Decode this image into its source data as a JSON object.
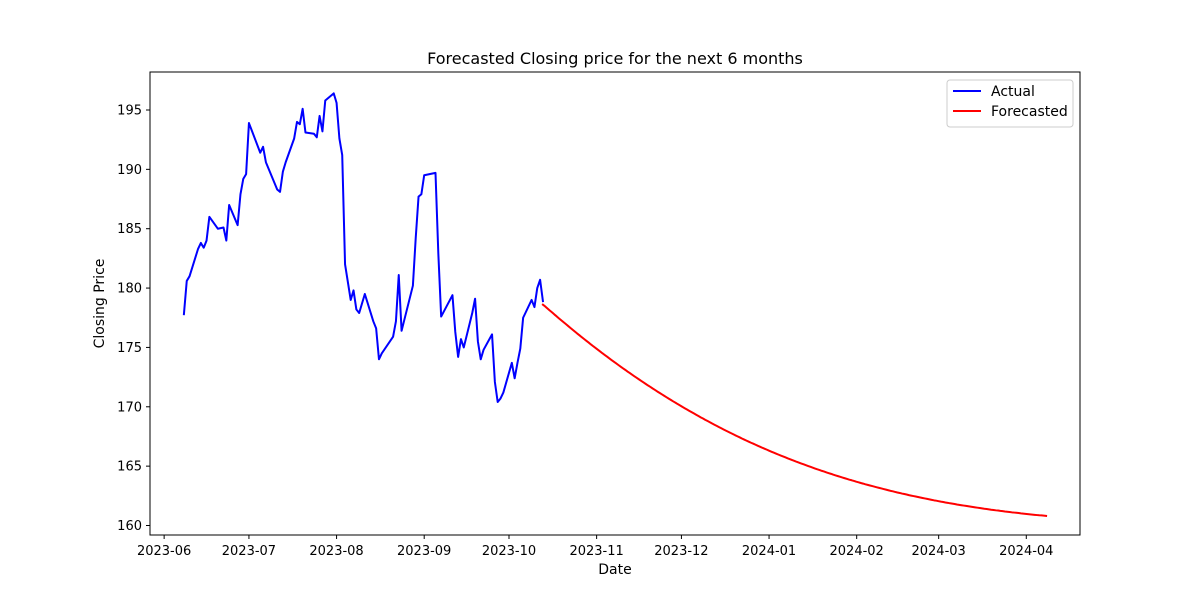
{
  "chart_data": {
    "type": "line",
    "title": "Forecasted Closing price for the next 6 months",
    "xlabel": "Date",
    "ylabel": "Closing Price",
    "xlim": [
      "2023-05-27",
      "2024-04-20"
    ],
    "ylim": [
      159.2,
      198.2
    ],
    "x_ticks": [
      "2023-06-01",
      "2023-07-01",
      "2023-08-01",
      "2023-09-01",
      "2023-10-01",
      "2023-11-01",
      "2023-12-01",
      "2024-01-01",
      "2024-02-01",
      "2024-03-01",
      "2024-04-01"
    ],
    "x_tick_labels": [
      "2023-06",
      "2023-07",
      "2023-08",
      "2023-09",
      "2023-10",
      "2023-11",
      "2023-12",
      "2024-01",
      "2024-02",
      "2024-03",
      "2024-04"
    ],
    "y_ticks": [
      160,
      165,
      170,
      175,
      180,
      185,
      190,
      195
    ],
    "grid": false,
    "legend_position": "top-right",
    "series": [
      {
        "name": "Actual",
        "color": "#0000ff",
        "x": [
          "2023-06-08",
          "2023-06-09",
          "2023-06-10",
          "2023-06-13",
          "2023-06-14",
          "2023-06-15",
          "2023-06-16",
          "2023-06-17",
          "2023-06-20",
          "2023-06-22",
          "2023-06-23",
          "2023-06-24",
          "2023-06-27",
          "2023-06-28",
          "2023-06-29",
          "2023-06-30",
          "2023-07-01",
          "2023-07-05",
          "2023-07-06",
          "2023-07-07",
          "2023-07-11",
          "2023-07-12",
          "2023-07-13",
          "2023-07-14",
          "2023-07-17",
          "2023-07-18",
          "2023-07-19",
          "2023-07-20",
          "2023-07-21",
          "2023-07-24",
          "2023-07-25",
          "2023-07-26",
          "2023-07-27",
          "2023-07-28",
          "2023-07-31",
          "2023-08-01",
          "2023-08-02",
          "2023-08-03",
          "2023-08-04",
          "2023-08-06",
          "2023-08-07",
          "2023-08-08",
          "2023-08-09",
          "2023-08-11",
          "2023-08-14",
          "2023-08-15",
          "2023-08-16",
          "2023-08-17",
          "2023-08-21",
          "2023-08-22",
          "2023-08-23",
          "2023-08-24",
          "2023-08-28",
          "2023-08-29",
          "2023-08-30",
          "2023-08-31",
          "2023-09-01",
          "2023-09-05",
          "2023-09-06",
          "2023-09-07",
          "2023-09-11",
          "2023-09-12",
          "2023-09-13",
          "2023-09-14",
          "2023-09-15",
          "2023-09-18",
          "2023-09-19",
          "2023-09-20",
          "2023-09-21",
          "2023-09-22",
          "2023-09-25",
          "2023-09-26",
          "2023-09-27",
          "2023-09-28",
          "2023-09-29",
          "2023-10-02",
          "2023-10-03",
          "2023-10-04",
          "2023-10-05",
          "2023-10-06",
          "2023-10-09",
          "2023-10-10",
          "2023-10-11",
          "2023-10-12",
          "2023-10-13"
        ],
        "values": [
          177.8,
          180.6,
          181.0,
          183.3,
          183.8,
          183.4,
          184.0,
          186.0,
          185.0,
          185.1,
          184.0,
          187.0,
          185.3,
          187.9,
          189.2,
          189.6,
          193.9,
          191.4,
          191.9,
          190.6,
          188.3,
          188.1,
          189.8,
          190.6,
          192.6,
          194.0,
          193.8,
          195.1,
          193.1,
          193.0,
          192.7,
          194.5,
          193.2,
          195.8,
          196.4,
          195.6,
          192.6,
          191.2,
          182.0,
          179.0,
          179.8,
          178.2,
          177.9,
          179.5,
          177.2,
          176.6,
          174.0,
          174.5,
          175.9,
          177.2,
          181.1,
          176.4,
          180.2,
          184.2,
          187.7,
          187.9,
          189.5,
          189.7,
          182.9,
          177.6,
          179.4,
          176.3,
          174.2,
          175.7,
          175.0,
          177.9,
          179.1,
          175.5,
          174.0,
          174.8,
          176.1,
          172.1,
          170.4,
          170.7,
          171.2,
          173.7,
          172.4,
          173.7,
          174.9,
          177.5,
          179.0,
          178.4,
          180.0,
          180.7,
          178.9
        ]
      },
      {
        "name": "Forecasted",
        "color": "#ff0000",
        "start": "2023-10-13",
        "end": "2024-04-08",
        "values": [
          178.6,
          178.45,
          178.28,
          178.11,
          177.95,
          177.78,
          177.62,
          177.45,
          177.29,
          177.13,
          176.97,
          176.81,
          176.65,
          176.49,
          176.33,
          176.17,
          176.02,
          175.86,
          175.71,
          175.56,
          175.41,
          175.25,
          175.1,
          174.96,
          174.81,
          174.66,
          174.51,
          174.37,
          174.23,
          174.08,
          173.94,
          173.8,
          173.66,
          173.52,
          173.38,
          173.24,
          173.11,
          172.97,
          172.84,
          172.7,
          172.57,
          172.44,
          172.31,
          172.18,
          172.05,
          171.92,
          171.79,
          171.67,
          171.54,
          171.42,
          171.29,
          171.17,
          171.05,
          170.93,
          170.81,
          170.69,
          170.57,
          170.45,
          170.34,
          170.22,
          170.11,
          169.99,
          169.88,
          169.77,
          169.66,
          169.55,
          169.44,
          169.33,
          169.22,
          169.11,
          169.01,
          168.9,
          168.8,
          168.7,
          168.59,
          168.49,
          168.39,
          168.29,
          168.19,
          168.09,
          167.99,
          167.9,
          167.8,
          167.71,
          167.61,
          167.52,
          167.43,
          167.33,
          167.24,
          167.15,
          167.06,
          166.97,
          166.89,
          166.8,
          166.71,
          166.63,
          166.54,
          166.46,
          166.38,
          166.29,
          166.21,
          166.13,
          166.05,
          165.97,
          165.89,
          165.82,
          165.74,
          165.66,
          165.59,
          165.51,
          165.44,
          165.36,
          165.29,
          165.22,
          165.15,
          165.08,
          165.01,
          164.94,
          164.87,
          164.8,
          164.73,
          164.67,
          164.6,
          164.54,
          164.47,
          164.41,
          164.35,
          164.28,
          164.22,
          164.16,
          164.1,
          164.04,
          163.98,
          163.92,
          163.86,
          163.81,
          163.75,
          163.69,
          163.64,
          163.58,
          163.53,
          163.47,
          163.42,
          163.37,
          163.32,
          163.27,
          163.22,
          163.17,
          163.12,
          163.07,
          163.02,
          162.97,
          162.92,
          162.88,
          162.83,
          162.78,
          162.74,
          162.69,
          162.65,
          162.61,
          162.56,
          162.52,
          162.48,
          162.44,
          162.4,
          162.36,
          162.32,
          162.28,
          162.24,
          162.2,
          162.16,
          162.12,
          162.09,
          162.05,
          162.01,
          161.98,
          161.94,
          161.91,
          161.87,
          161.84,
          161.81,
          161.77,
          161.74,
          161.71,
          161.68,
          161.65,
          161.62,
          161.59,
          161.56,
          161.53,
          161.5,
          161.47,
          161.44,
          161.41,
          161.39,
          161.36,
          161.33,
          161.31,
          161.28,
          161.26,
          161.23,
          161.21,
          161.18,
          161.16,
          161.14,
          161.11,
          161.09,
          161.07,
          161.05,
          161.02,
          161.0,
          160.98,
          160.96,
          160.94,
          160.92,
          160.9,
          160.88,
          160.86,
          160.85,
          160.83,
          160.81
        ]
      }
    ]
  }
}
